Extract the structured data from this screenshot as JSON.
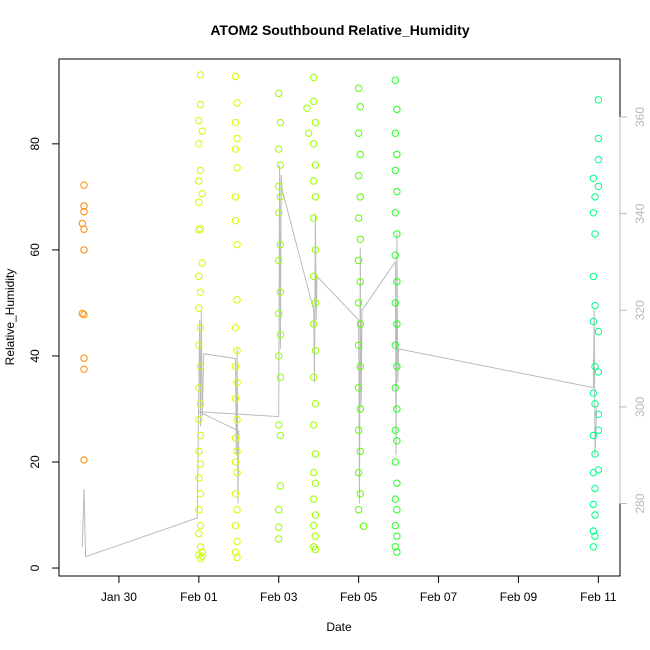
{
  "chart_data": {
    "type": "scatter",
    "title": "ATOM2 Southbound Relative_Humidity",
    "xlabel": "Date",
    "ylabel": "Relative_Humidity",
    "x_axis": {
      "type": "date",
      "range": [
        "2020-01-28T12:00",
        "2020-02-11T13:00"
      ],
      "ticks": [
        {
          "date": "2020-01-30",
          "label": "Jan 30"
        },
        {
          "date": "2020-02-01",
          "label": "Feb 01"
        },
        {
          "date": "2020-02-03",
          "label": "Feb 03"
        },
        {
          "date": "2020-02-05",
          "label": "Feb 05"
        },
        {
          "date": "2020-02-07",
          "label": "Feb 07"
        },
        {
          "date": "2020-02-09",
          "label": "Feb 09"
        },
        {
          "date": "2020-02-11",
          "label": "Feb 11"
        }
      ]
    },
    "y_axis": {
      "range": [
        -1.5,
        96
      ],
      "ticks": [
        0,
        20,
        40,
        60,
        80
      ]
    },
    "y2_axis": {
      "range": [
        265,
        372
      ],
      "ticks": [
        280,
        300,
        320,
        340,
        360
      ],
      "color": "#bbbbbb"
    },
    "grid": false,
    "legend": "none",
    "series": [
      {
        "color": "#ff8c00",
        "points": [
          [
            "2020-01-29T02:00",
            65.0
          ],
          [
            "2020-01-29T02:00",
            48.0
          ],
          [
            "2020-01-29T03:00",
            72.2
          ],
          [
            "2020-01-29T03:00",
            68.3
          ],
          [
            "2020-01-29T03:00",
            67.2
          ],
          [
            "2020-01-29T03:00",
            63.9
          ],
          [
            "2020-01-29T03:00",
            60.0
          ],
          [
            "2020-01-29T03:00",
            47.8
          ],
          [
            "2020-01-29T03:00",
            39.6
          ],
          [
            "2020-01-29T03:00",
            37.5
          ],
          [
            "2020-01-29T03:00",
            20.4
          ]
        ]
      },
      {
        "color": "#ccff00",
        "points": [
          [
            "2020-02-01T00:00",
            84.4
          ],
          [
            "2020-02-01T01:00",
            93.0
          ],
          [
            "2020-02-01T01:00",
            87.4
          ],
          [
            "2020-02-01T02:00",
            82.4
          ],
          [
            "2020-02-01T00:00",
            80.0
          ],
          [
            "2020-02-01T01:00",
            75.0
          ],
          [
            "2020-02-01T00:00",
            73.0
          ],
          [
            "2020-02-01T02:00",
            70.6
          ],
          [
            "2020-02-01T00:00",
            69.0
          ],
          [
            "2020-02-01T01:00",
            64.0
          ],
          [
            "2020-02-01T00:00",
            63.8
          ],
          [
            "2020-02-01T02:00",
            57.5
          ],
          [
            "2020-02-01T00:00",
            55.0
          ],
          [
            "2020-02-01T01:00",
            52.0
          ],
          [
            "2020-02-01T00:00",
            49.0
          ],
          [
            "2020-02-01T01:00",
            45.3
          ],
          [
            "2020-02-01T00:00",
            42.0
          ],
          [
            "2020-02-01T01:00",
            38.0
          ],
          [
            "2020-02-01T00:00",
            34.0
          ],
          [
            "2020-02-01T01:00",
            31.0
          ],
          [
            "2020-02-01T00:00",
            28.0
          ],
          [
            "2020-02-01T01:00",
            25.0
          ],
          [
            "2020-02-01T00:00",
            22.0
          ],
          [
            "2020-02-01T01:00",
            19.6
          ],
          [
            "2020-02-01T00:00",
            17.0
          ],
          [
            "2020-02-01T01:00",
            14.0
          ],
          [
            "2020-02-01T00:00",
            11.0
          ],
          [
            "2020-02-01T01:00",
            8.0
          ],
          [
            "2020-02-01T00:00",
            6.5
          ],
          [
            "2020-02-01T01:00",
            4.0
          ],
          [
            "2020-02-01T00:00",
            2.5
          ],
          [
            "2020-02-01T01:00",
            1.8
          ],
          [
            "2020-02-01T02:00",
            2.2
          ],
          [
            "2020-02-01T02:00",
            3.0
          ],
          [
            "2020-02-01T22:00",
            92.7
          ],
          [
            "2020-02-01T23:00",
            87.7
          ],
          [
            "2020-02-01T22:00",
            84.0
          ],
          [
            "2020-02-01T23:00",
            81.0
          ],
          [
            "2020-02-01T22:00",
            79.0
          ],
          [
            "2020-02-01T23:00",
            75.5
          ],
          [
            "2020-02-01T22:00",
            70.0
          ],
          [
            "2020-02-01T22:00",
            65.5
          ],
          [
            "2020-02-01T23:00",
            61.0
          ],
          [
            "2020-02-01T23:00",
            50.6
          ],
          [
            "2020-02-01T22:00",
            45.3
          ],
          [
            "2020-02-01T23:00",
            41.0
          ],
          [
            "2020-02-01T22:00",
            38.0
          ],
          [
            "2020-02-01T23:00",
            35.0
          ],
          [
            "2020-02-01T22:00",
            32.0
          ],
          [
            "2020-02-01T23:00",
            28.0
          ],
          [
            "2020-02-01T22:00",
            24.5
          ],
          [
            "2020-02-01T23:00",
            22.0
          ],
          [
            "2020-02-01T22:00",
            20.0
          ],
          [
            "2020-02-01T23:00",
            18.0
          ],
          [
            "2020-02-01T22:00",
            14.0
          ],
          [
            "2020-02-01T23:00",
            11.0
          ],
          [
            "2020-02-01T22:00",
            8.0
          ],
          [
            "2020-02-01T23:00",
            5.0
          ],
          [
            "2020-02-01T22:00",
            3.0
          ],
          [
            "2020-02-01T23:00",
            2.0
          ]
        ]
      },
      {
        "color": "#99ff00",
        "points": [
          [
            "2020-02-03T00:00",
            89.5
          ],
          [
            "2020-02-03T01:00",
            84.0
          ],
          [
            "2020-02-03T00:00",
            79.0
          ],
          [
            "2020-02-03T01:00",
            76.0
          ],
          [
            "2020-02-03T00:00",
            72.0
          ],
          [
            "2020-02-03T01:00",
            70.0
          ],
          [
            "2020-02-03T00:00",
            67.0
          ],
          [
            "2020-02-03T01:00",
            61.0
          ],
          [
            "2020-02-03T00:00",
            58.0
          ],
          [
            "2020-02-03T01:00",
            52.0
          ],
          [
            "2020-02-03T00:00",
            48.0
          ],
          [
            "2020-02-03T01:00",
            44.0
          ],
          [
            "2020-02-03T00:00",
            40.0
          ],
          [
            "2020-02-03T01:00",
            36.0
          ],
          [
            "2020-02-03T00:00",
            27.0
          ],
          [
            "2020-02-03T01:00",
            25.0
          ],
          [
            "2020-02-03T01:00",
            15.5
          ],
          [
            "2020-02-03T00:00",
            11.0
          ],
          [
            "2020-02-03T00:00",
            7.7
          ],
          [
            "2020-02-03T00:00",
            5.5
          ],
          [
            "2020-02-03T17:00",
            86.7
          ],
          [
            "2020-02-03T18:00",
            82.0
          ],
          [
            "2020-02-03T21:00",
            92.5
          ],
          [
            "2020-02-03T21:00",
            88.0
          ],
          [
            "2020-02-03T22:00",
            84.0
          ],
          [
            "2020-02-03T21:00",
            80.0
          ],
          [
            "2020-02-03T22:00",
            76.0
          ],
          [
            "2020-02-03T21:00",
            73.0
          ],
          [
            "2020-02-03T22:00",
            70.0
          ],
          [
            "2020-02-03T21:00",
            66.0
          ],
          [
            "2020-02-03T22:00",
            60.0
          ],
          [
            "2020-02-03T21:00",
            55.0
          ],
          [
            "2020-02-03T22:00",
            50.0
          ],
          [
            "2020-02-03T21:00",
            46.0
          ],
          [
            "2020-02-03T22:00",
            41.0
          ],
          [
            "2020-02-03T21:00",
            36.0
          ],
          [
            "2020-02-03T22:00",
            31.0
          ],
          [
            "2020-02-03T21:00",
            27.0
          ],
          [
            "2020-02-03T22:00",
            21.5
          ],
          [
            "2020-02-03T21:00",
            18.0
          ],
          [
            "2020-02-03T22:00",
            16.0
          ],
          [
            "2020-02-03T21:00",
            13.0
          ],
          [
            "2020-02-03T22:00",
            10.0
          ],
          [
            "2020-02-03T21:00",
            8.0
          ],
          [
            "2020-02-03T22:00",
            6.0
          ],
          [
            "2020-02-03T21:00",
            4.0
          ],
          [
            "2020-02-03T22:00",
            3.5
          ]
        ]
      },
      {
        "color": "#55ff00",
        "points": [
          [
            "2020-02-05T00:00",
            90.5
          ],
          [
            "2020-02-05T01:00",
            87.0
          ],
          [
            "2020-02-05T00:00",
            82.0
          ],
          [
            "2020-02-05T01:00",
            78.0
          ],
          [
            "2020-02-05T00:00",
            74.0
          ],
          [
            "2020-02-05T01:00",
            70.0
          ],
          [
            "2020-02-05T00:00",
            66.0
          ],
          [
            "2020-02-05T01:00",
            62.0
          ],
          [
            "2020-02-05T00:00",
            58.0
          ],
          [
            "2020-02-05T01:00",
            54.0
          ],
          [
            "2020-02-05T00:00",
            50.0
          ],
          [
            "2020-02-05T01:00",
            46.0
          ],
          [
            "2020-02-05T00:00",
            42.0
          ],
          [
            "2020-02-05T01:00",
            38.0
          ],
          [
            "2020-02-05T00:00",
            34.0
          ],
          [
            "2020-02-05T01:00",
            30.0
          ],
          [
            "2020-02-05T00:00",
            26.0
          ],
          [
            "2020-02-05T01:00",
            22.0
          ],
          [
            "2020-02-05T00:00",
            18.0
          ],
          [
            "2020-02-05T01:00",
            14.0
          ],
          [
            "2020-02-05T00:00",
            11.0
          ],
          [
            "2020-02-05T03:00",
            7.9
          ]
        ]
      },
      {
        "color": "#22ff22",
        "points": [
          [
            "2020-02-05T22:00",
            92.0
          ],
          [
            "2020-02-05T23:00",
            86.5
          ],
          [
            "2020-02-05T22:00",
            82.0
          ],
          [
            "2020-02-05T23:00",
            78.0
          ],
          [
            "2020-02-05T22:00",
            75.0
          ],
          [
            "2020-02-05T23:00",
            71.0
          ],
          [
            "2020-02-05T22:00",
            67.0
          ],
          [
            "2020-02-05T23:00",
            63.0
          ],
          [
            "2020-02-05T22:00",
            59.0
          ],
          [
            "2020-02-05T23:00",
            54.0
          ],
          [
            "2020-02-05T22:00",
            50.0
          ],
          [
            "2020-02-05T23:00",
            46.0
          ],
          [
            "2020-02-05T22:00",
            42.0
          ],
          [
            "2020-02-05T23:00",
            38.0
          ],
          [
            "2020-02-05T22:00",
            34.0
          ],
          [
            "2020-02-05T23:00",
            30.0
          ],
          [
            "2020-02-05T22:00",
            26.0
          ],
          [
            "2020-02-05T23:00",
            24.0
          ],
          [
            "2020-02-05T22:00",
            20.0
          ],
          [
            "2020-02-05T23:00",
            16.0
          ],
          [
            "2020-02-05T22:00",
            13.0
          ],
          [
            "2020-02-05T23:00",
            11.0
          ],
          [
            "2020-02-05T22:00",
            8.0
          ],
          [
            "2020-02-05T23:00",
            6.0
          ],
          [
            "2020-02-05T22:00",
            4.0
          ],
          [
            "2020-02-05T23:00",
            3.0
          ]
        ]
      },
      {
        "color": "#00ff88",
        "points": [
          [
            "2020-02-10T21:00",
            73.5
          ],
          [
            "2020-02-10T22:00",
            70.0
          ],
          [
            "2020-02-10T21:00",
            67.0
          ],
          [
            "2020-02-10T22:00",
            63.0
          ],
          [
            "2020-02-10T21:00",
            55.0
          ],
          [
            "2020-02-10T22:00",
            49.5
          ],
          [
            "2020-02-10T21:00",
            46.5
          ],
          [
            "2020-02-10T22:00",
            38.0
          ],
          [
            "2020-02-10T21:00",
            33.0
          ],
          [
            "2020-02-10T22:00",
            31.0
          ],
          [
            "2020-02-10T21:00",
            25.0
          ],
          [
            "2020-02-10T22:00",
            21.5
          ],
          [
            "2020-02-10T21:00",
            18.0
          ],
          [
            "2020-02-10T22:00",
            15.0
          ],
          [
            "2020-02-10T21:00",
            12.0
          ],
          [
            "2020-02-10T22:00",
            10.0
          ],
          [
            "2020-02-10T21:00",
            7.0
          ],
          [
            "2020-02-10T22:00",
            6.0
          ],
          [
            "2020-02-10T21:00",
            4.0
          ],
          [
            "2020-02-11T00:00",
            88.3
          ],
          [
            "2020-02-11T00:00",
            81.0
          ],
          [
            "2020-02-11T00:00",
            77.0
          ],
          [
            "2020-02-11T00:00",
            72.0
          ],
          [
            "2020-02-11T00:00",
            44.6
          ],
          [
            "2020-02-11T00:00",
            37.0
          ],
          [
            "2020-02-11T00:00",
            29.0
          ],
          [
            "2020-02-11T00:00",
            26.0
          ],
          [
            "2020-02-11T00:00",
            18.5
          ]
        ]
      }
    ],
    "overlay_line": {
      "axis": "y2",
      "color": "#bbbbbb",
      "points": [
        [
          "2020-01-29T02:00",
          271
        ],
        [
          "2020-01-29T03:00",
          283
        ],
        [
          "2020-01-29T04:00",
          269
        ],
        [
          "2020-01-31T23:00",
          277
        ],
        [
          "2020-02-01T00:00",
          303
        ],
        [
          "2020-02-01T00:30",
          318
        ],
        [
          "2020-02-01T01:00",
          296
        ],
        [
          "2020-02-01T01:30",
          320
        ],
        [
          "2020-02-01T02:00",
          298
        ],
        [
          "2020-02-01T03:00",
          311
        ],
        [
          "2020-02-01T22:00",
          310
        ],
        [
          "2020-02-01T22:30",
          290
        ],
        [
          "2020-02-01T23:00",
          312
        ],
        [
          "2020-02-01T23:30",
          280
        ],
        [
          "2020-02-02T00:00",
          295
        ],
        [
          "2020-02-01T00:00",
          299
        ],
        [
          "2020-02-03T00:00",
          298
        ],
        [
          "2020-02-03T00:30",
          350
        ],
        [
          "2020-02-03T01:00",
          312
        ],
        [
          "2020-02-03T01:30",
          348
        ],
        [
          "2020-02-03T02:00",
          345
        ],
        [
          "2020-02-03T21:00",
          320
        ],
        [
          "2020-02-03T21:30",
          305
        ],
        [
          "2020-02-03T22:00",
          340
        ],
        [
          "2020-02-03T22:30",
          318
        ],
        [
          "2020-02-03T23:00",
          327
        ],
        [
          "2020-02-05T00:00",
          318
        ],
        [
          "2020-02-05T00:30",
          280
        ],
        [
          "2020-02-05T01:00",
          333
        ],
        [
          "2020-02-05T01:30",
          300
        ],
        [
          "2020-02-05T02:00",
          320
        ],
        [
          "2020-02-05T22:00",
          330
        ],
        [
          "2020-02-05T22:30",
          290
        ],
        [
          "2020-02-05T23:00",
          336
        ],
        [
          "2020-02-05T23:30",
          305
        ],
        [
          "2020-02-06T00:00",
          312
        ],
        [
          "2020-02-10T21:00",
          304
        ],
        [
          "2020-02-10T21:30",
          320
        ],
        [
          "2020-02-10T22:00",
          290
        ],
        [
          "2020-02-10T23:00",
          300
        ]
      ]
    }
  }
}
